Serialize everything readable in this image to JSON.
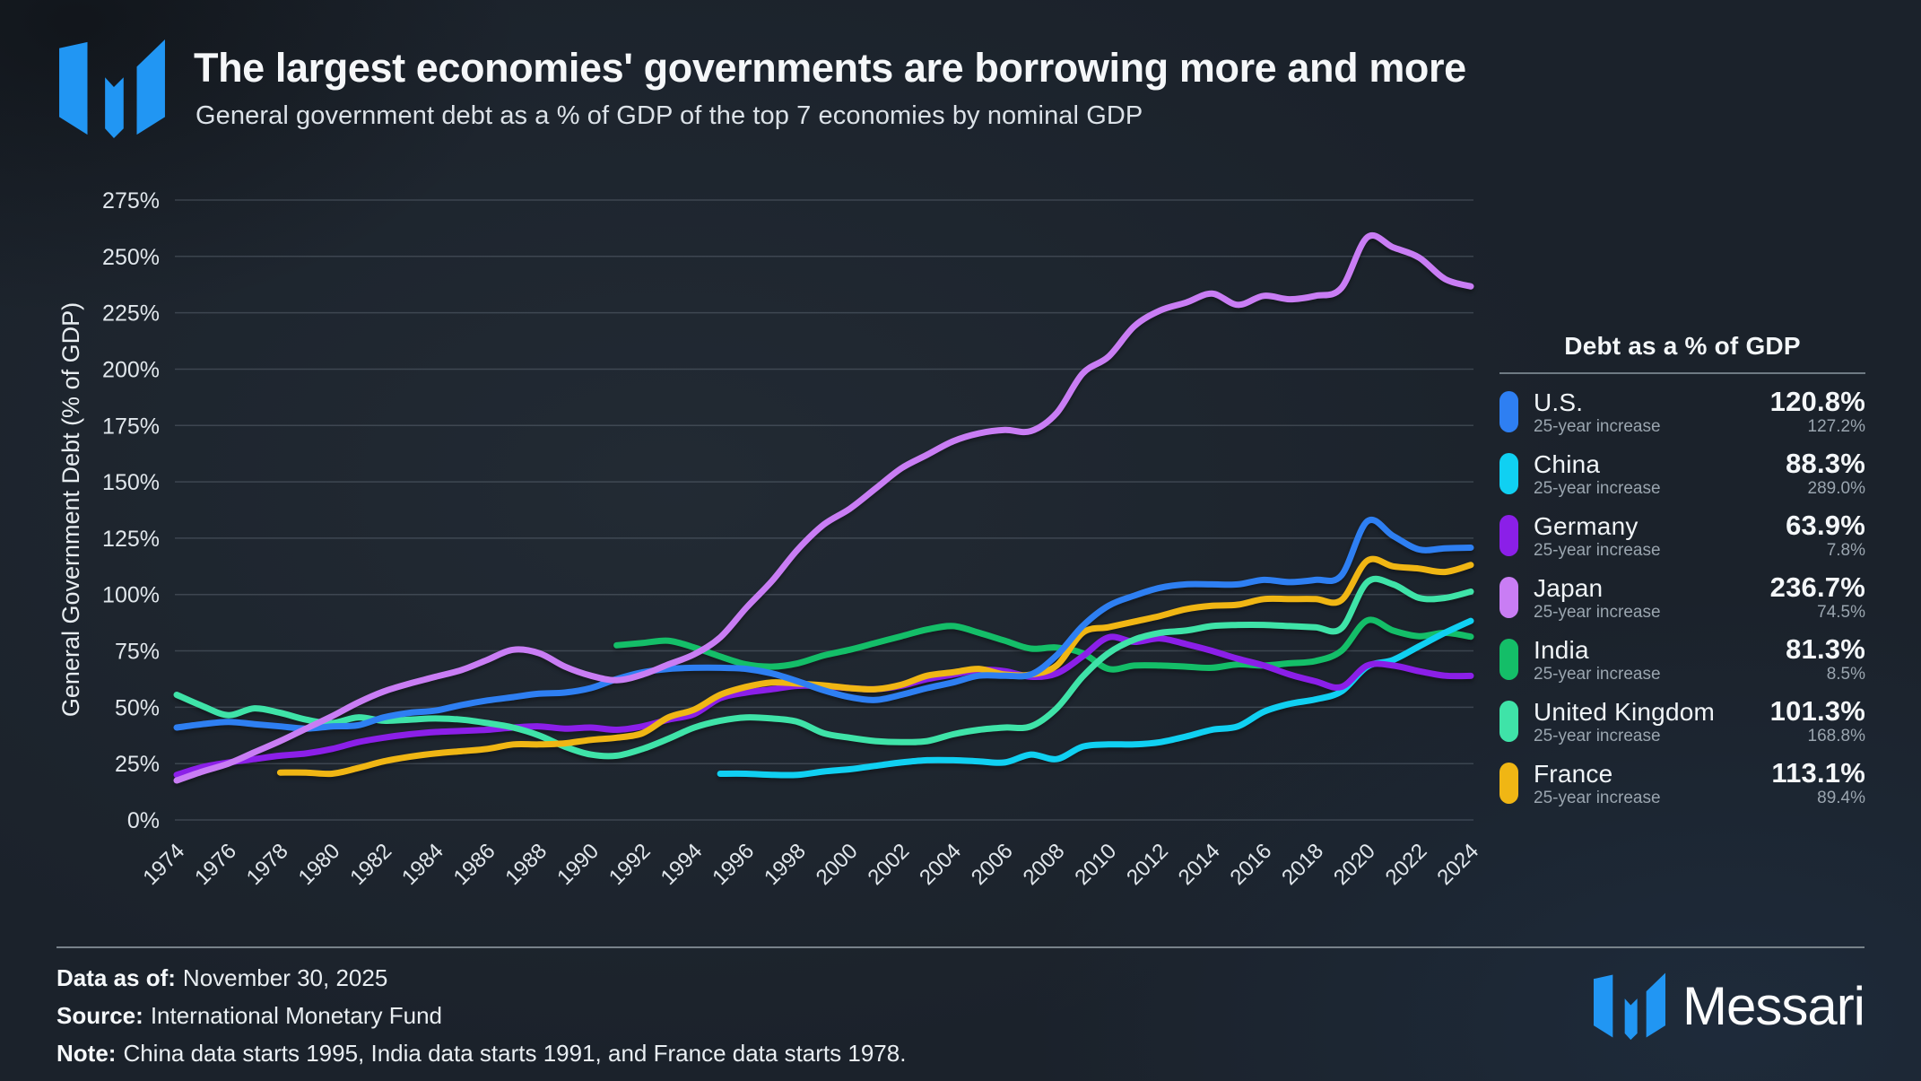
{
  "header": {
    "title": "The largest economies' governments are borrowing more and more",
    "subtitle": "General government debt as a % of GDP of the top 7 economies by nominal GDP"
  },
  "legend": {
    "title": "Debt as a % of GDP",
    "items": [
      {
        "name": "U.S.",
        "value": "120.8%",
        "sub_label": "25-year increase",
        "sub_value": "127.2%"
      },
      {
        "name": "China",
        "value": "88.3%",
        "sub_label": "25-year increase",
        "sub_value": "289.0%"
      },
      {
        "name": "Germany",
        "value": "63.9%",
        "sub_label": "25-year increase",
        "sub_value": "7.8%"
      },
      {
        "name": "Japan",
        "value": "236.7%",
        "sub_label": "25-year increase",
        "sub_value": "74.5%"
      },
      {
        "name": "India",
        "value": "81.3%",
        "sub_label": "25-year increase",
        "sub_value": "8.5%"
      },
      {
        "name": "United Kingdom",
        "value": "101.3%",
        "sub_label": "25-year increase",
        "sub_value": "168.8%"
      },
      {
        "name": "France",
        "value": "113.1%",
        "sub_label": "25-year increase",
        "sub_value": "89.4%"
      }
    ]
  },
  "footer": {
    "data_as_of_label": "Data as of:",
    "data_as_of": "November 30, 2025",
    "source_label": "Source:",
    "source": "International Monetary Fund",
    "note_label": "Note:",
    "note": "China data starts 1995, India data starts 1991, and France data starts 1978.",
    "brand": "Messari"
  },
  "colors": {
    "background": "#1b222b",
    "grid": "#39434d",
    "logo_blue": "#2196f3",
    "divider": "#78828a"
  },
  "chart_data": {
    "type": "line",
    "title": "General government debt as a % of GDP of the top 7 economies by nominal GDP",
    "xlabel": "",
    "ylabel": "General Government Debt (% of GDP)",
    "ylim": [
      0,
      275
    ],
    "y_tick_step": 25,
    "y_tick_suffix": "%",
    "x_range": [
      1974,
      2024
    ],
    "x_ticks": [
      1974,
      1976,
      1978,
      1980,
      1982,
      1984,
      1986,
      1988,
      1990,
      1992,
      1994,
      1996,
      1998,
      2000,
      2002,
      2004,
      2006,
      2008,
      2010,
      2012,
      2014,
      2016,
      2018,
      2020,
      2022,
      2024
    ],
    "grid": "horizontal",
    "legend_position": "right",
    "years": [
      1974,
      1975,
      1976,
      1977,
      1978,
      1979,
      1980,
      1981,
      1982,
      1983,
      1984,
      1985,
      1986,
      1987,
      1988,
      1989,
      1990,
      1991,
      1992,
      1993,
      1994,
      1995,
      1996,
      1997,
      1998,
      1999,
      2000,
      2001,
      2002,
      2003,
      2004,
      2005,
      2006,
      2007,
      2008,
      2009,
      2010,
      2011,
      2012,
      2013,
      2014,
      2015,
      2016,
      2017,
      2018,
      2019,
      2020,
      2021,
      2022,
      2023,
      2024
    ],
    "series": [
      {
        "name": "U.S.",
        "color": "#2e7ff2",
        "values": [
          41,
          42.5,
          43.5,
          42.5,
          41.5,
          40.5,
          41.5,
          42,
          45.5,
          47.5,
          48.5,
          51,
          53,
          54.5,
          56,
          56.5,
          58.5,
          62.5,
          65.5,
          67,
          67.5,
          67.5,
          67,
          65,
          61.5,
          57.5,
          54.5,
          53.2,
          55.5,
          58.5,
          61,
          64,
          64,
          64.5,
          73,
          86,
          95,
          99.5,
          103,
          104.5,
          104.5,
          104.5,
          106.5,
          105.5,
          106.5,
          108.5,
          132.5,
          126,
          120,
          120.5,
          120.8
        ]
      },
      {
        "name": "China",
        "color": "#10d0f2",
        "values": [
          null,
          null,
          null,
          null,
          null,
          null,
          null,
          null,
          null,
          null,
          null,
          null,
          null,
          null,
          null,
          null,
          null,
          null,
          null,
          null,
          null,
          20.5,
          20.5,
          20,
          20,
          21.5,
          22.5,
          24,
          25.5,
          26.5,
          26.5,
          26,
          25.5,
          29,
          27,
          32.5,
          33.5,
          33.5,
          34.5,
          37,
          40,
          41.5,
          48,
          51.5,
          53.5,
          57,
          68,
          71,
          77,
          83,
          88.3
        ]
      },
      {
        "name": "Germany",
        "color": "#8b1fe8",
        "values": [
          20,
          23.5,
          25.5,
          27,
          28.5,
          29.5,
          31.5,
          34.5,
          36.5,
          38,
          39,
          39.5,
          40,
          41,
          41.5,
          40.5,
          41,
          40,
          41.5,
          44.5,
          47,
          54,
          56.5,
          58,
          59.5,
          59.3,
          58.5,
          58,
          59.5,
          62.5,
          64.5,
          66.5,
          66,
          63.5,
          65,
          72.5,
          81,
          79,
          80.5,
          78,
          75,
          71.5,
          68.5,
          64.5,
          61.5,
          59,
          68.5,
          68.5,
          66,
          64,
          63.9
        ]
      },
      {
        "name": "Japan",
        "color": "#c97df4",
        "values": [
          17.5,
          21.5,
          25,
          30,
          35,
          40.5,
          46,
          52,
          57,
          60.5,
          63.5,
          66.5,
          71,
          75.5,
          74,
          68,
          64,
          62,
          64.5,
          69,
          73.5,
          81,
          94,
          106,
          120,
          131,
          138,
          147,
          156,
          162,
          168,
          171.5,
          173,
          172.5,
          180.5,
          198,
          205.5,
          219,
          226,
          229.5,
          233.5,
          228.5,
          232.5,
          231,
          232.5,
          236,
          258.5,
          254,
          249.5,
          240,
          236.7
        ]
      },
      {
        "name": "India",
        "color": "#14be68",
        "values": [
          null,
          null,
          null,
          null,
          null,
          null,
          null,
          null,
          null,
          null,
          null,
          null,
          null,
          null,
          null,
          null,
          null,
          77.5,
          78.5,
          79.5,
          76.5,
          72.5,
          69,
          68,
          69.5,
          73,
          75.5,
          78.5,
          81.5,
          84.5,
          86,
          83,
          79.5,
          76,
          76.5,
          74,
          67,
          68.5,
          68.5,
          68,
          67.5,
          69,
          68.5,
          69.5,
          70.5,
          75,
          88.5,
          84,
          81.5,
          83,
          81.3
        ]
      },
      {
        "name": "United Kingdom",
        "color": "#3fe3a8",
        "values": [
          55.5,
          50.5,
          46.5,
          49.5,
          47.5,
          44.5,
          43,
          45.5,
          44,
          44.5,
          45,
          44.5,
          43,
          41,
          37.5,
          32.5,
          29,
          28.5,
          31.5,
          36,
          41,
          44,
          45.5,
          45,
          43.5,
          38.5,
          36.5,
          35,
          34.5,
          35,
          38,
          40,
          41,
          41.5,
          49.5,
          63.5,
          74,
          80,
          83,
          84,
          86,
          86.5,
          86.5,
          86,
          85.5,
          85,
          105.5,
          104.5,
          98.5,
          98.5,
          101.3
        ]
      },
      {
        "name": "France",
        "color": "#f0b614",
        "values": [
          null,
          null,
          null,
          null,
          21,
          21,
          20.5,
          23,
          26,
          28,
          29.5,
          30.5,
          31.5,
          33.5,
          33.5,
          34,
          35.5,
          36.5,
          38.5,
          45.5,
          49,
          55.5,
          59,
          61,
          60.5,
          59.7,
          58.5,
          58,
          60,
          64,
          65.5,
          67,
          64.5,
          64.5,
          68.5,
          83,
          85.5,
          88,
          90.5,
          93.5,
          95,
          95.5,
          98,
          98,
          98,
          97.5,
          115,
          112.5,
          111.5,
          110,
          113.1
        ]
      }
    ]
  }
}
